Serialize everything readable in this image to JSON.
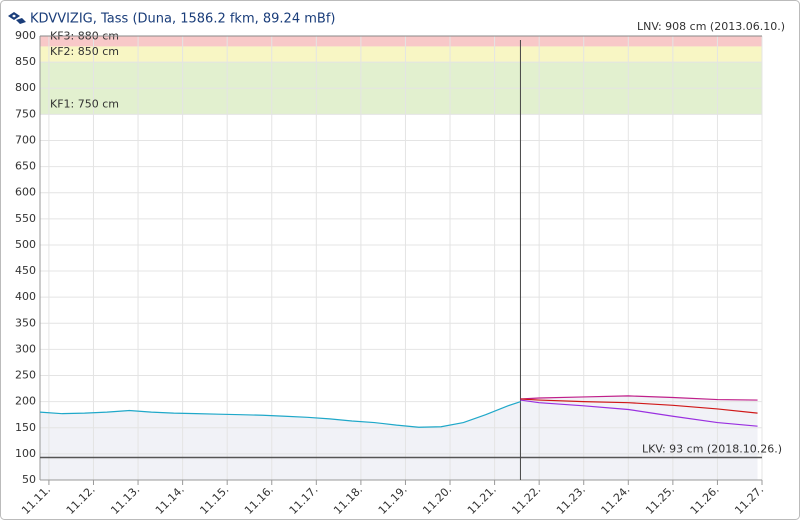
{
  "chart_data": {
    "type": "line",
    "title": "KDVVIZIG, Tass (Duna, 1586.2 fkm, 89.24 mBf)",
    "top_note": "LNV: 908 cm (2013.06.10.)",
    "xlim": [
      -0.2,
      16
    ],
    "xticks": [
      {
        "value": 0,
        "label": "11.11."
      },
      {
        "value": 1,
        "label": "11.12."
      },
      {
        "value": 2,
        "label": "11.13."
      },
      {
        "value": 3,
        "label": "11.14."
      },
      {
        "value": 4,
        "label": "11.15."
      },
      {
        "value": 5,
        "label": "11.16."
      },
      {
        "value": 6,
        "label": "11.17."
      },
      {
        "value": 7,
        "label": "11.18."
      },
      {
        "value": 8,
        "label": "11.19."
      },
      {
        "value": 9,
        "label": "11.20."
      },
      {
        "value": 10,
        "label": "11.21."
      },
      {
        "value": 11,
        "label": "11.22."
      },
      {
        "value": 12,
        "label": "11.23."
      },
      {
        "value": 13,
        "label": "11.24."
      },
      {
        "value": 14,
        "label": "11.25."
      },
      {
        "value": 15,
        "label": "11.26."
      },
      {
        "value": 16,
        "label": "11.27."
      }
    ],
    "ylim": [
      50,
      900
    ],
    "yticks": [
      50,
      100,
      150,
      200,
      250,
      300,
      350,
      400,
      450,
      500,
      550,
      600,
      650,
      700,
      750,
      800,
      850,
      900
    ],
    "grid": true,
    "bands": [
      {
        "label": "KF3: 880 cm",
        "from": 880,
        "to": 900,
        "color": "#f8c8c8"
      },
      {
        "label": "KF2: 850 cm",
        "from": 850,
        "to": 880,
        "color": "#f8f6c4"
      },
      {
        "label": "KF1: 750 cm",
        "from": 750,
        "to": 850,
        "color": "#e2f0cf"
      }
    ],
    "reference_lines": [
      {
        "label": "LKV: 93 cm (2018.10.26.)",
        "value": 93,
        "color": "#555555"
      }
    ],
    "vertical_line_x": 10.58,
    "series": [
      {
        "color": "#1fa8c9",
        "fill": "#f1f2f7",
        "x": [
          -0.2,
          0.3,
          0.8,
          1.3,
          1.8,
          2.3,
          2.8,
          3.3,
          3.8,
          4.3,
          4.8,
          5.3,
          5.8,
          6.3,
          6.8,
          7.3,
          7.8,
          8.3,
          8.8,
          9.3,
          9.8,
          10.3,
          10.58
        ],
        "values": [
          180,
          177,
          178,
          180,
          183,
          180,
          178,
          177,
          176,
          175,
          174,
          172,
          170,
          167,
          163,
          160,
          155,
          151,
          152,
          160,
          175,
          192,
          200
        ]
      },
      {
        "color": "#c0208a",
        "x": [
          10.58,
          11,
          12,
          13,
          14,
          15,
          15.9
        ],
        "values": [
          205,
          207,
          209,
          211,
          208,
          204,
          203
        ]
      },
      {
        "color": "#d01818",
        "x": [
          10.58,
          11,
          12,
          13,
          14,
          15,
          15.9
        ],
        "values": [
          205,
          203,
          200,
          198,
          193,
          186,
          178
        ]
      },
      {
        "color": "#9a30e0",
        "x": [
          10.58,
          11,
          12,
          13,
          14,
          15,
          15.9
        ],
        "values": [
          203,
          198,
          192,
          185,
          172,
          160,
          153
        ]
      }
    ]
  }
}
